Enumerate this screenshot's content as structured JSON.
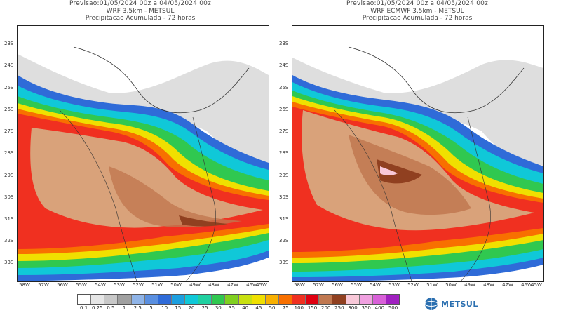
{
  "panels": [
    {
      "line1": "Previsao:01/05/2024 00z a 04/05/2024 00z",
      "line2": "WRF 3.5km - METSUL",
      "line3": "Precipitacao Acumulada - 72 horas"
    },
    {
      "line1": "Previsao:01/05/2024 00z a 04/05/2024 00z",
      "line2": "WRF ECMWF 3.5km - METSUL",
      "line3": "Precipitacao Acumulada - 72 horas"
    }
  ],
  "lat_labels": [
    "23S",
    "24S",
    "25S",
    "26S",
    "27S",
    "28S",
    "29S",
    "30S",
    "31S",
    "32S",
    "33S"
  ],
  "lon_labels": [
    "58W",
    "57W",
    "56W",
    "55W",
    "54W",
    "53W",
    "52W",
    "51W",
    "50W",
    "49W",
    "48W",
    "47W",
    "46W",
    "45W"
  ],
  "legend": {
    "labels": [
      "0.1",
      "0.25",
      "0.5",
      "1",
      "2.5",
      "5",
      "10",
      "15",
      "20",
      "25",
      "30",
      "35",
      "40",
      "45",
      "50",
      "75",
      "100",
      "150",
      "200",
      "250",
      "300",
      "350",
      "400",
      "500"
    ],
    "colors": [
      "#ffffff",
      "#e6e6e6",
      "#c8c8c8",
      "#a0a0a0",
      "#8fb4e8",
      "#5a8fe0",
      "#2f6bd8",
      "#1c9fe0",
      "#10c8d8",
      "#20d0a0",
      "#30c850",
      "#80d020",
      "#c8e010",
      "#f0e000",
      "#f8b000",
      "#f87000",
      "#f03020",
      "#e00010",
      "#c07850",
      "#904020",
      "#f8c8d8",
      "#f0a0e0",
      "#d860d8",
      "#a020c0"
    ]
  },
  "logo": {
    "text": "METSUL",
    "icon": "globe-icon"
  }
}
